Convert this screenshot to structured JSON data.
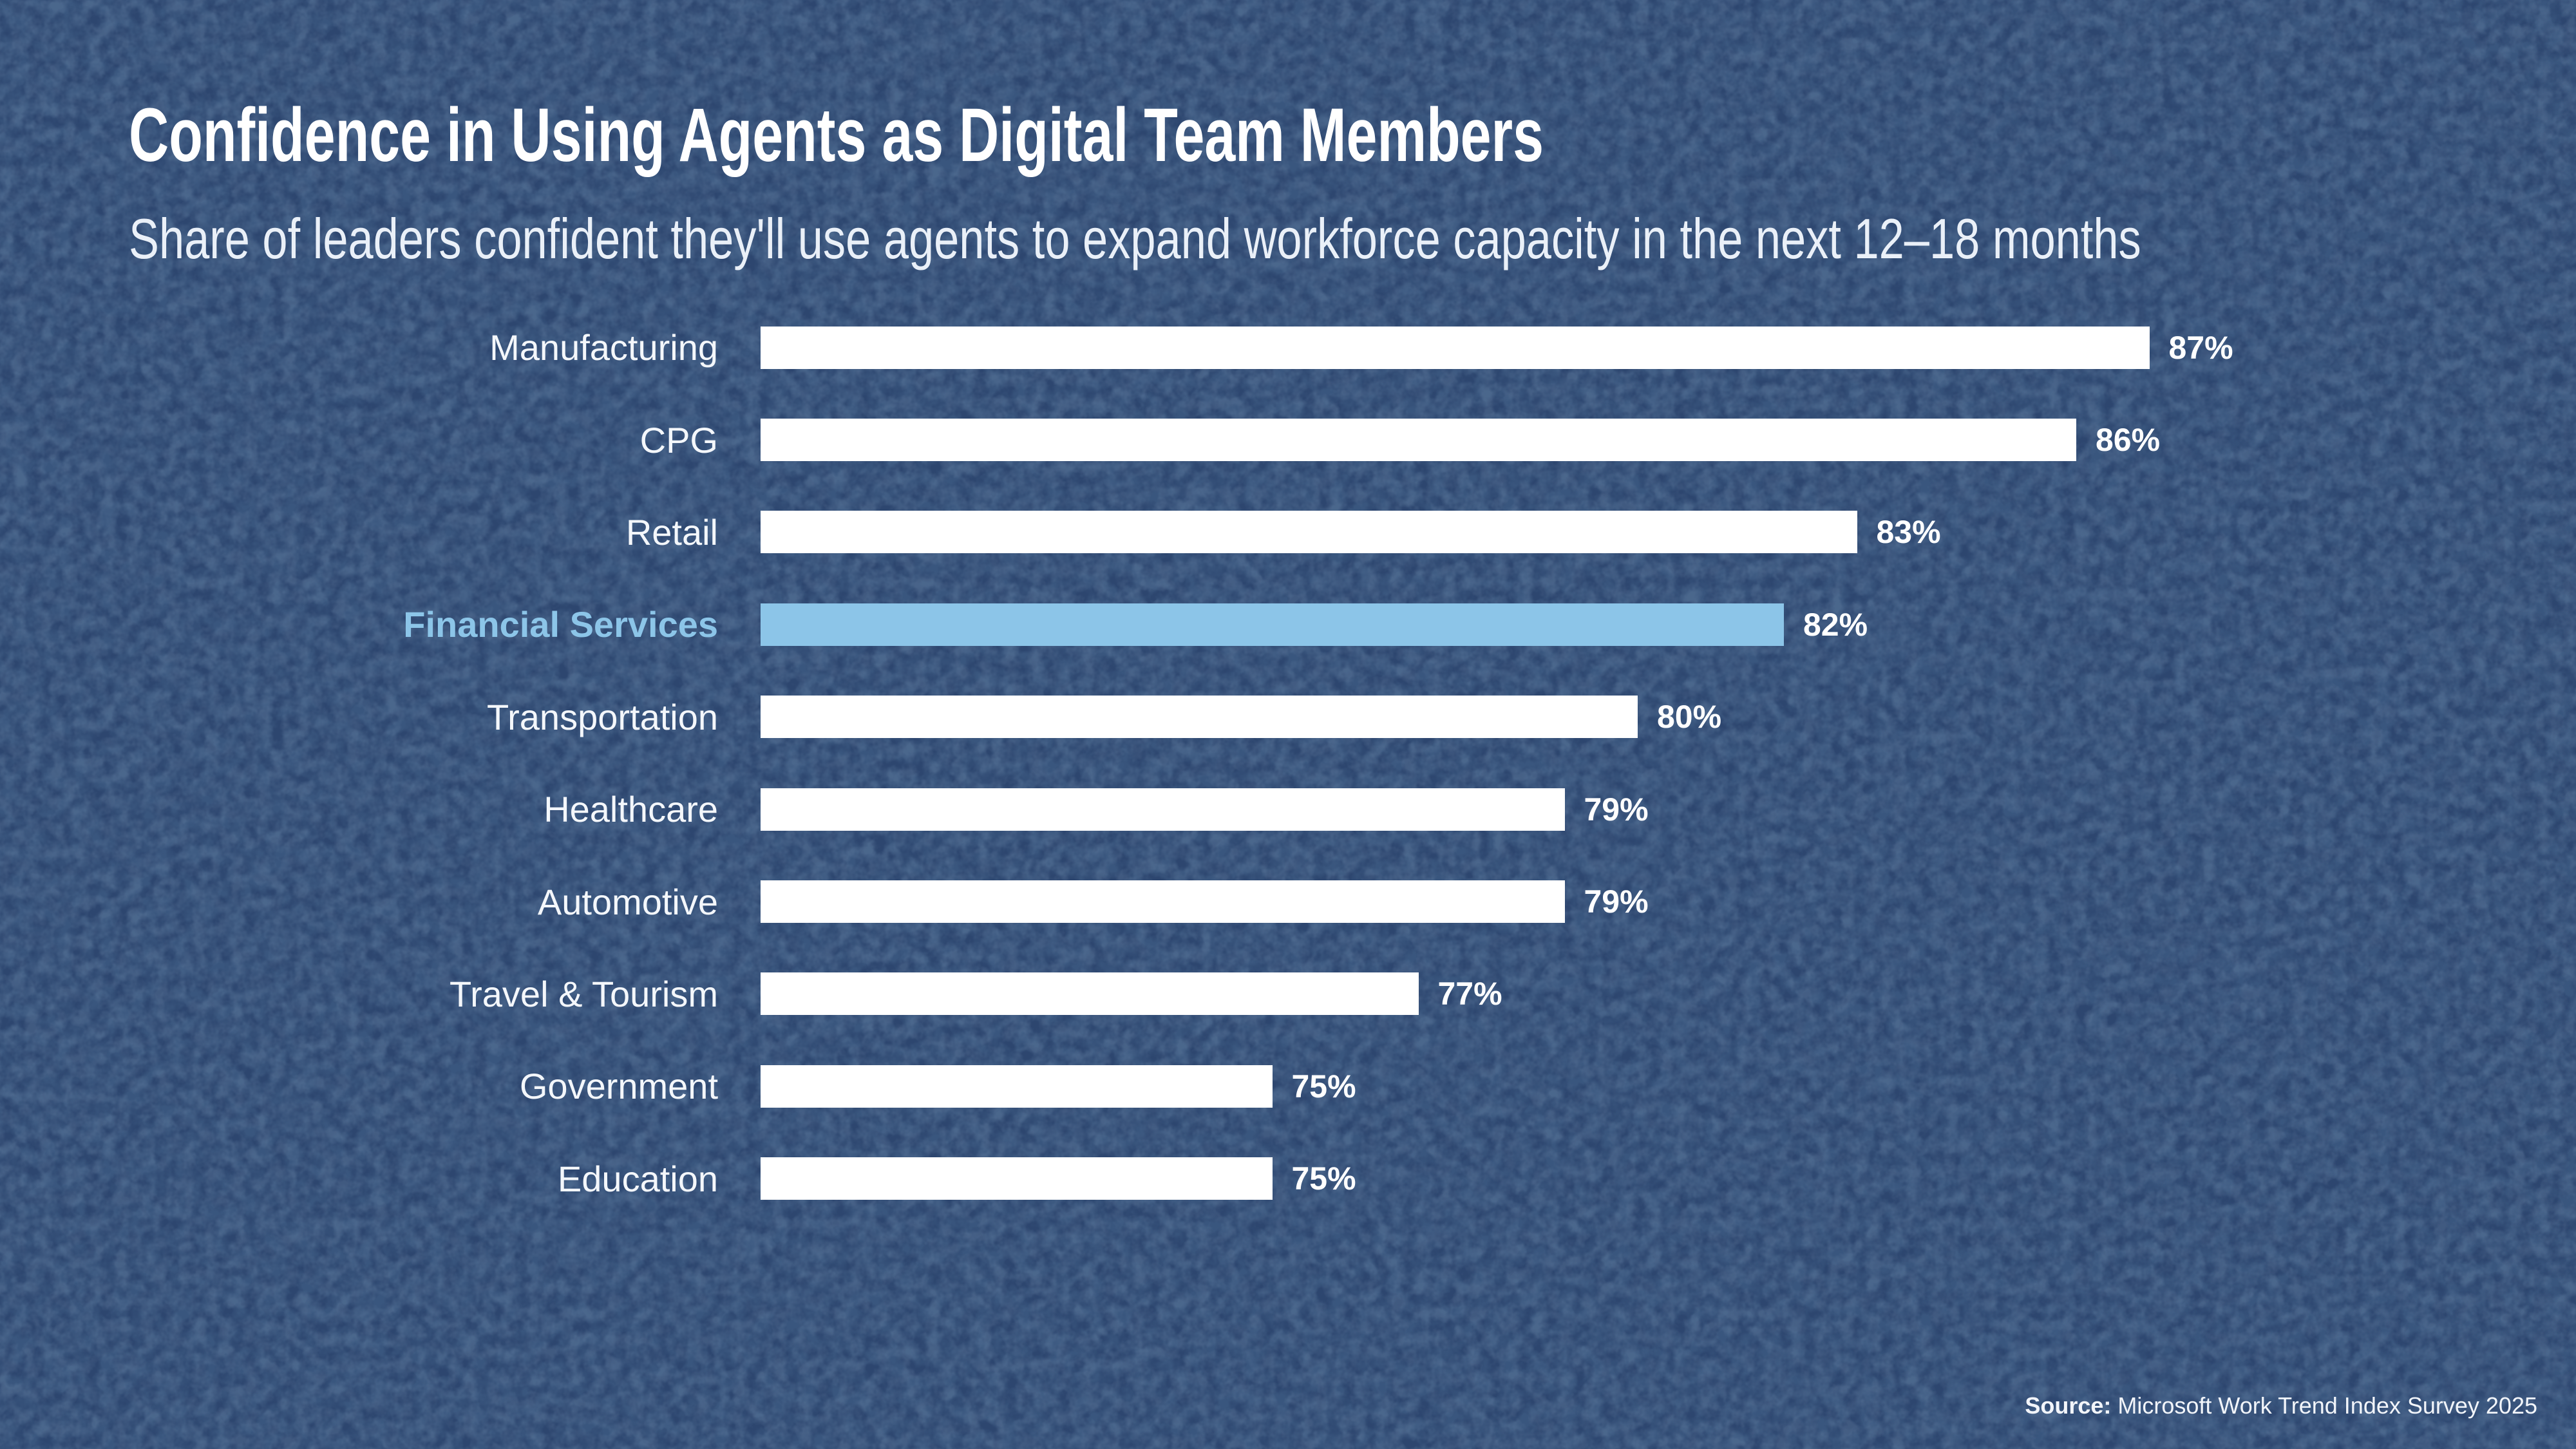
{
  "title": "Confidence in Using Agents as Digital Team Members",
  "subtitle": "Share of leaders confident they'll use agents to expand workforce capacity in the next 12–18 months",
  "source": {
    "prefix": "Source:",
    "text": " Microsoft Work Trend Index Survey 2025"
  },
  "colors": {
    "background": "#2D466F",
    "background_blotch_dark": "#1F3458",
    "background_fleck_light": "#52739E",
    "bar_default": "#FFFFFF",
    "bar_highlight": "#8CC5E8",
    "label_default": "#F4F7FB",
    "label_highlight": "#8CC5E8",
    "value_text": "#FFFFFF",
    "title_text": "#FFFFFF",
    "subtitle_text": "#EAF0F8"
  },
  "chart_data": {
    "type": "bar",
    "orientation": "horizontal",
    "title": "Confidence in Using Agents as Digital Team Members",
    "subtitle": "Share of leaders confident they'll use agents to expand workforce capacity in the next 12–18 months",
    "categories": [
      "Manufacturing",
      "CPG",
      "Retail",
      "Financial Services",
      "Transportation",
      "Healthcare",
      "Automotive",
      "Travel & Tourism",
      "Government",
      "Education"
    ],
    "values": [
      87,
      86,
      83,
      82,
      80,
      79,
      79,
      77,
      75,
      75
    ],
    "value_suffix": "%",
    "highlight_category": "Financial Services",
    "xlabel": "",
    "ylabel": "",
    "xlim": [
      68,
      92
    ],
    "grid": false,
    "legend": false,
    "value_labels_position": "right-of-bar"
  }
}
